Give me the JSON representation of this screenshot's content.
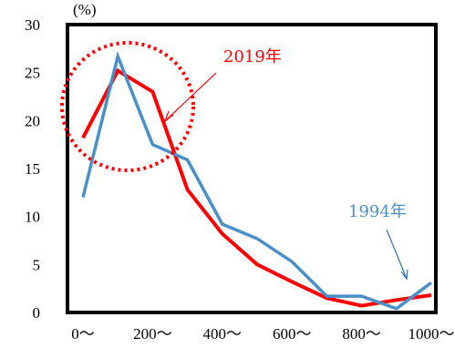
{
  "chart_data": {
    "type": "line",
    "title": "",
    "xlabel": "",
    "ylabel": "(%)",
    "ylim": [
      0,
      30
    ],
    "y_ticks": [
      0,
      5,
      10,
      15,
      20,
      25,
      30
    ],
    "x_tick_labels": [
      "0～",
      "200～",
      "400～",
      "600～",
      "800～",
      "1000～"
    ],
    "x": [
      0,
      100,
      200,
      300,
      400,
      500,
      600,
      700,
      800,
      900,
      1000
    ],
    "grid": false,
    "series": [
      {
        "name": "2019年",
        "color": "#ff0000",
        "values": [
          18.2,
          25.2,
          23.0,
          12.8,
          8.2,
          5.0,
          3.2,
          1.5,
          0.7,
          1.3,
          1.8
        ]
      },
      {
        "name": "1994年",
        "color": "#4a90c8",
        "values": [
          12.0,
          26.7,
          17.5,
          15.9,
          9.2,
          7.7,
          5.3,
          1.7,
          1.7,
          0.4,
          3.1
        ]
      }
    ],
    "annotations": [
      {
        "text": "2019年",
        "color": "#ff0000"
      },
      {
        "text": "1994年",
        "color": "#4a90c8"
      }
    ]
  }
}
